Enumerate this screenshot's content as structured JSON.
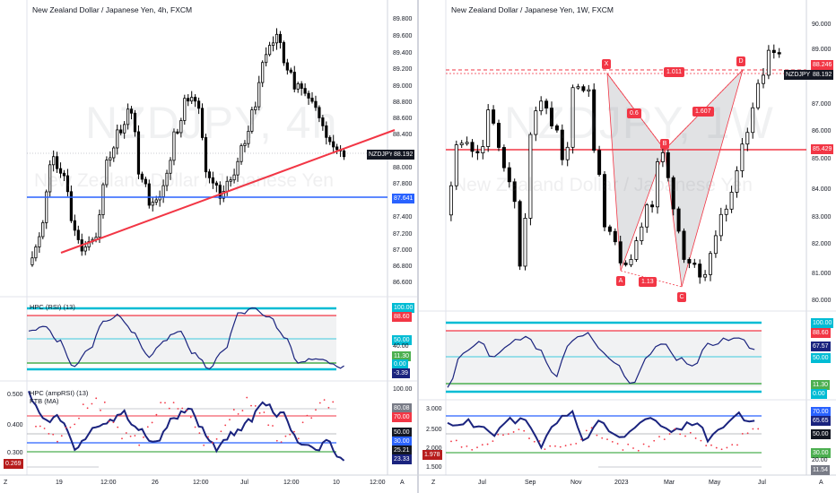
{
  "left": {
    "title": "New Zealand Dollar / Japanese Yen, 4h, FXCM",
    "watermark": "NZDJPY, 4h",
    "watermark_sub": "New Zealand Dollar / Japanese Yen",
    "price_axis": [
      "89.800",
      "89.600",
      "89.400",
      "89.200",
      "89.000",
      "88.800",
      "88.600",
      "88.400",
      "88.000",
      "87.800",
      "87.400",
      "87.200",
      "87.000",
      "86.800",
      "86.600"
    ],
    "ticker_label": "NZDJPY",
    "ticker_price": "88.192",
    "blue_level": "87.641",
    "rsi": {
      "title": "HPC (RSI) (13)",
      "labels": {
        "l100": "100.00",
        "l886": "88.60",
        "l50": "50.00",
        "l40": "40.00",
        "l113": "11.30",
        "l0": "0.00",
        "lval": "-3.39"
      }
    },
    "amprsi": {
      "title": "HPC (ampRSI) (13)",
      "title2": "FTB (MA)",
      "left_labels": [
        "0.500",
        "0.400",
        "0.300"
      ],
      "left_value": "0.269",
      "labels": {
        "l100": "100.00",
        "l80": "80.08",
        "l70": "70.00",
        "l50": "50.00",
        "l30": "30.00",
        "l2521": "25.21",
        "l2333": "23.33"
      }
    },
    "time_axis": [
      "19",
      "12:00",
      "26",
      "12:00",
      "Jul",
      "12:00",
      "10",
      "12:00"
    ],
    "corner_left": "Z",
    "corner_right": "A"
  },
  "right": {
    "title": "New Zealand Dollar / Japanese Yen, 1W, FXCM",
    "watermark": "NZDJPY, 1W",
    "watermark_sub": "New Zealand Dollar / Japanese Yen",
    "price_axis": [
      "90.000",
      "89.000",
      "87.000",
      "86.000",
      "85.000",
      "84.000",
      "83.000",
      "82.000",
      "81.000",
      "80.000"
    ],
    "ticker_label": "NZDJPY",
    "ticker_price": "88.192",
    "red_top": "88.246",
    "red_mid": "85.429",
    "pattern": {
      "X": "X",
      "A": "A",
      "B": "B",
      "C": "C",
      "D": "D",
      "r1": "0.6",
      "r2": "1.13",
      "r3": "1.607",
      "r4": "1.011"
    },
    "rsi": {
      "labels": {
        "l100": "100.00",
        "l886": "88.60",
        "l6757": "67.57",
        "l50": "50.00",
        "l113": "11.30",
        "l0": "0.00"
      }
    },
    "amprsi": {
      "left_labels": [
        "3.000",
        "2.500",
        "2.000",
        "1.500"
      ],
      "left_value": "1.978",
      "labels": {
        "l70": "70.00",
        "l6565": "65.65",
        "l50": "50.00",
        "l30": "30.00",
        "l20": "20.00",
        "l1154": "11.54"
      }
    },
    "time_axis": [
      "Jul",
      "Sep",
      "Nov",
      "2023",
      "Mar",
      "May",
      "Jul"
    ],
    "corner_left": "Z",
    "corner_right": "A"
  },
  "colors": {
    "up": "#ffffff",
    "down": "#000000",
    "red": "#f23645",
    "blue": "#2962ff",
    "cyan": "#00bcd4",
    "green": "#4caf50",
    "navy": "#1a237e"
  }
}
